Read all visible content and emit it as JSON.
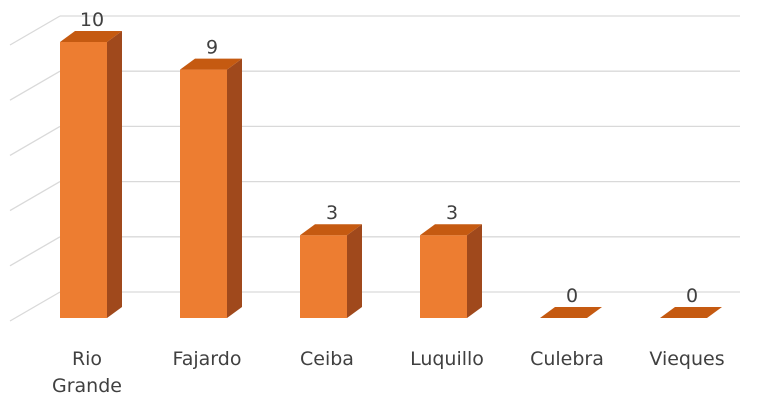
{
  "chart_data": {
    "type": "bar",
    "style": "3d-column",
    "categories": [
      "Rio Grande",
      "Fajardo",
      "Ceiba",
      "Luquillo",
      "Culebra",
      "Vieques"
    ],
    "category_lines": [
      [
        "Rio",
        "Grande"
      ],
      [
        "Fajardo"
      ],
      [
        "Ceiba"
      ],
      [
        "Luquillo"
      ],
      [
        "Culebra"
      ],
      [
        "Vieques"
      ]
    ],
    "values": [
      10,
      9,
      3,
      3,
      0,
      0
    ],
    "data_labels": [
      "10",
      "9",
      "3",
      "3",
      "0",
      "0"
    ],
    "ylim": [
      0,
      10
    ],
    "y_step": 2,
    "grid": true,
    "legend": "none",
    "colors": {
      "bar_front": "#ED7D31",
      "bar_top": "#C55A11",
      "bar_side": "#A0491C",
      "grid": "#D9D9D9",
      "label_text": "#404040"
    }
  }
}
